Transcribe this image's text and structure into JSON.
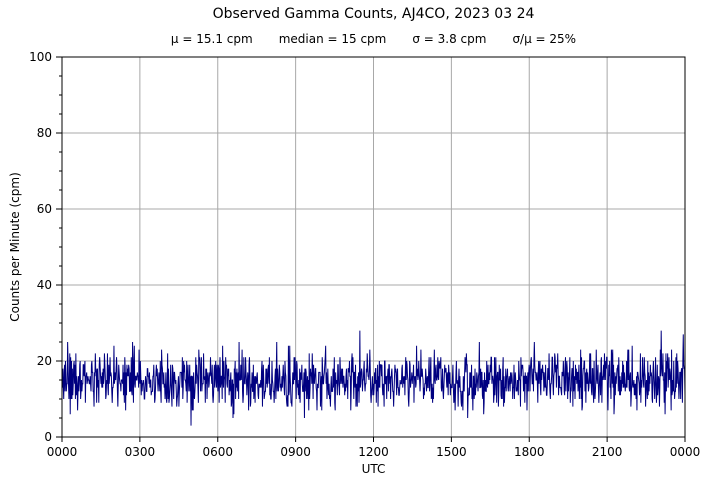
{
  "chart_data": {
    "type": "line",
    "title": "Observed Gamma Counts, AJ4CO, 2023 03 24",
    "subtitle_stats": [
      "μ = 15.1 cpm",
      "median = 15 cpm",
      "σ = 3.8 cpm",
      "σ/μ = 25%"
    ],
    "xlabel": "UTC",
    "ylabel": "Counts per Minute (cpm)",
    "x_tick_labels": [
      "0000",
      "0300",
      "0600",
      "0900",
      "1200",
      "1500",
      "1800",
      "2100",
      "0000"
    ],
    "x_range_minutes": [
      0,
      1440
    ],
    "y_ticks": [
      0,
      20,
      40,
      60,
      80,
      100
    ],
    "ylim": [
      0,
      100
    ],
    "minor_y_tick_step": 5,
    "grid": true,
    "legend": false,
    "n_points": 1440,
    "series": [
      {
        "name": "observed gamma counts",
        "units": "cpm",
        "mean": 15.1,
        "median": 15,
        "sigma": 3.8,
        "observed_min": 3,
        "observed_max": 29,
        "sampling": "1 sample per minute over 24 h UTC, integer counts (poisson-like noise)",
        "seed": 20230324
      }
    ],
    "colors": {
      "line": "#000080",
      "grid": "#a8a8a8",
      "axis": "#000000",
      "background": "#ffffff",
      "text": "#000000"
    }
  }
}
